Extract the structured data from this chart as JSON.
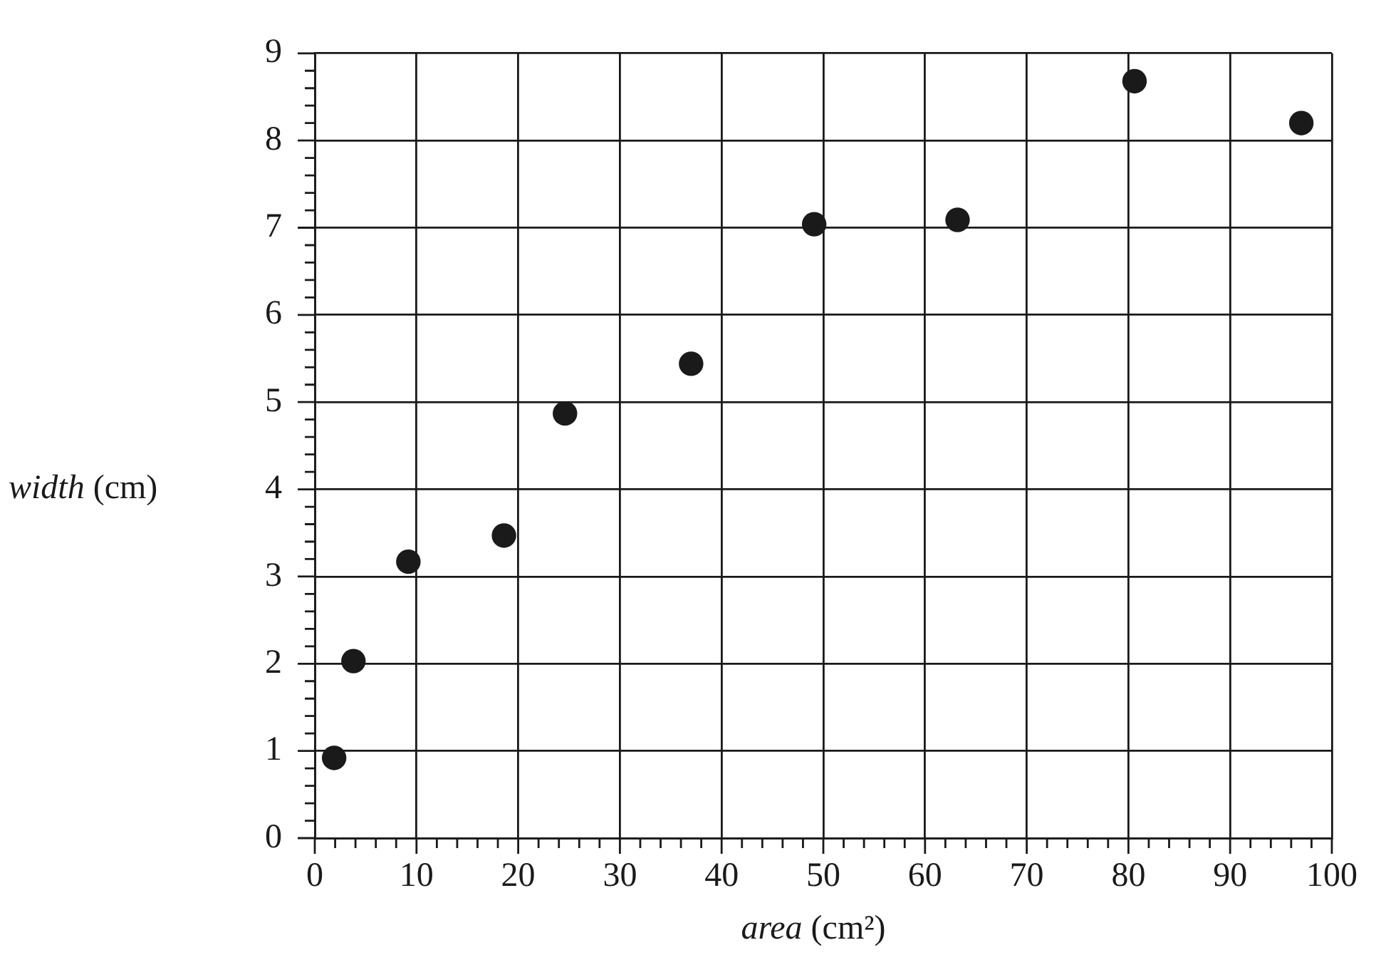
{
  "chart_data": {
    "type": "scatter",
    "xlabel": "area (cm²)",
    "ylabel": "width (cm)",
    "x": [
      1.9,
      3.8,
      9.2,
      18.6,
      24.6,
      37.0,
      49.1,
      63.2,
      80.6,
      97.0
    ],
    "values": [
      0.92,
      2.03,
      3.17,
      3.47,
      4.87,
      5.44,
      7.04,
      7.09,
      8.68,
      8.2
    ],
    "color": "#1a1a1a",
    "marker": "circle",
    "grid": true,
    "xlim": [
      0,
      100
    ],
    "xticks": [
      0,
      {
        "value": 2,
        "label": null
      },
      {
        "value": 4,
        "label": null
      },
      {
        "value": 6,
        "label": null
      },
      {
        "value": 8,
        "label": null
      },
      10,
      {
        "value": 12,
        "label": null
      },
      {
        "value": 14,
        "label": null
      },
      {
        "value": 16,
        "label": null
      },
      {
        "value": 18,
        "label": null
      },
      20,
      {
        "value": 22,
        "label": null
      },
      {
        "value": 24,
        "label": null
      },
      {
        "value": 26,
        "label": null
      },
      {
        "value": 28,
        "label": null
      },
      30,
      {
        "value": 32,
        "label": null
      },
      {
        "value": 34,
        "label": null
      },
      {
        "value": 36,
        "label": null
      },
      {
        "value": 38,
        "label": null
      },
      40,
      {
        "value": 42,
        "label": null
      },
      {
        "value": 44,
        "label": null
      },
      {
        "value": 46,
        "label": null
      },
      {
        "value": 48,
        "label": null
      },
      50,
      {
        "value": 52,
        "label": null
      },
      {
        "value": 54,
        "label": null
      },
      {
        "value": 56,
        "label": null
      },
      {
        "value": 58,
        "label": null
      },
      60,
      {
        "value": 62,
        "label": null
      },
      {
        "value": 64,
        "label": null
      },
      {
        "value": 66,
        "label": null
      },
      {
        "value": 68,
        "label": null
      },
      70,
      {
        "value": 72,
        "label": null
      },
      {
        "value": 74,
        "label": null
      },
      {
        "value": 76,
        "label": null
      },
      {
        "value": 78,
        "label": null
      },
      80,
      {
        "value": 82,
        "label": null
      },
      {
        "value": 84,
        "label": null
      },
      {
        "value": 86,
        "label": null
      },
      {
        "value": 88,
        "label": null
      },
      90,
      {
        "value": 92,
        "label": null
      },
      {
        "value": 94,
        "label": null
      },
      {
        "value": 96,
        "label": null
      },
      {
        "value": 98,
        "label": null
      },
      100
    ],
    "ylim": [
      0,
      9
    ],
    "yticks": [
      0,
      {
        "value": 0.2,
        "label": null
      },
      {
        "value": 0.4,
        "label": null
      },
      {
        "value": 0.6,
        "label": null
      },
      {
        "value": 0.8,
        "label": null
      },
      1,
      {
        "value": 1.2,
        "label": null
      },
      {
        "value": 1.4,
        "label": null
      },
      {
        "value": 1.6,
        "label": null
      },
      {
        "value": 1.8,
        "label": null
      },
      2,
      {
        "value": 2.2,
        "label": null
      },
      {
        "value": 2.4,
        "label": null
      },
      {
        "value": 2.6,
        "label": null
      },
      {
        "value": 2.8,
        "label": null
      },
      3,
      {
        "value": 3.2,
        "label": null
      },
      {
        "value": 3.4,
        "label": null
      },
      {
        "value": 3.6,
        "label": null
      },
      {
        "value": 3.8,
        "label": null
      },
      4,
      {
        "value": 4.2,
        "label": null
      },
      {
        "value": 4.4,
        "label": null
      },
      {
        "value": 4.6,
        "label": null
      },
      {
        "value": 4.8,
        "label": null
      },
      5,
      {
        "value": 5.2,
        "label": null
      },
      {
        "value": 5.4,
        "label": null
      },
      {
        "value": 5.6,
        "label": null
      },
      {
        "value": 5.8,
        "label": null
      },
      6,
      {
        "value": 6.2,
        "label": null
      },
      {
        "value": 6.4,
        "label": null
      },
      {
        "value": 6.6,
        "label": null
      },
      {
        "value": 6.8,
        "label": null
      },
      7,
      {
        "value": 7.2,
        "label": null
      },
      {
        "value": 7.4,
        "label": null
      },
      {
        "value": 7.6,
        "label": null
      },
      {
        "value": 7.8,
        "label": null
      },
      8,
      {
        "value": 8.2,
        "label": null
      },
      {
        "value": 8.4,
        "label": null
      },
      {
        "value": 8.6,
        "label": null
      },
      {
        "value": 8.8,
        "label": null
      },
      9
    ]
  }
}
